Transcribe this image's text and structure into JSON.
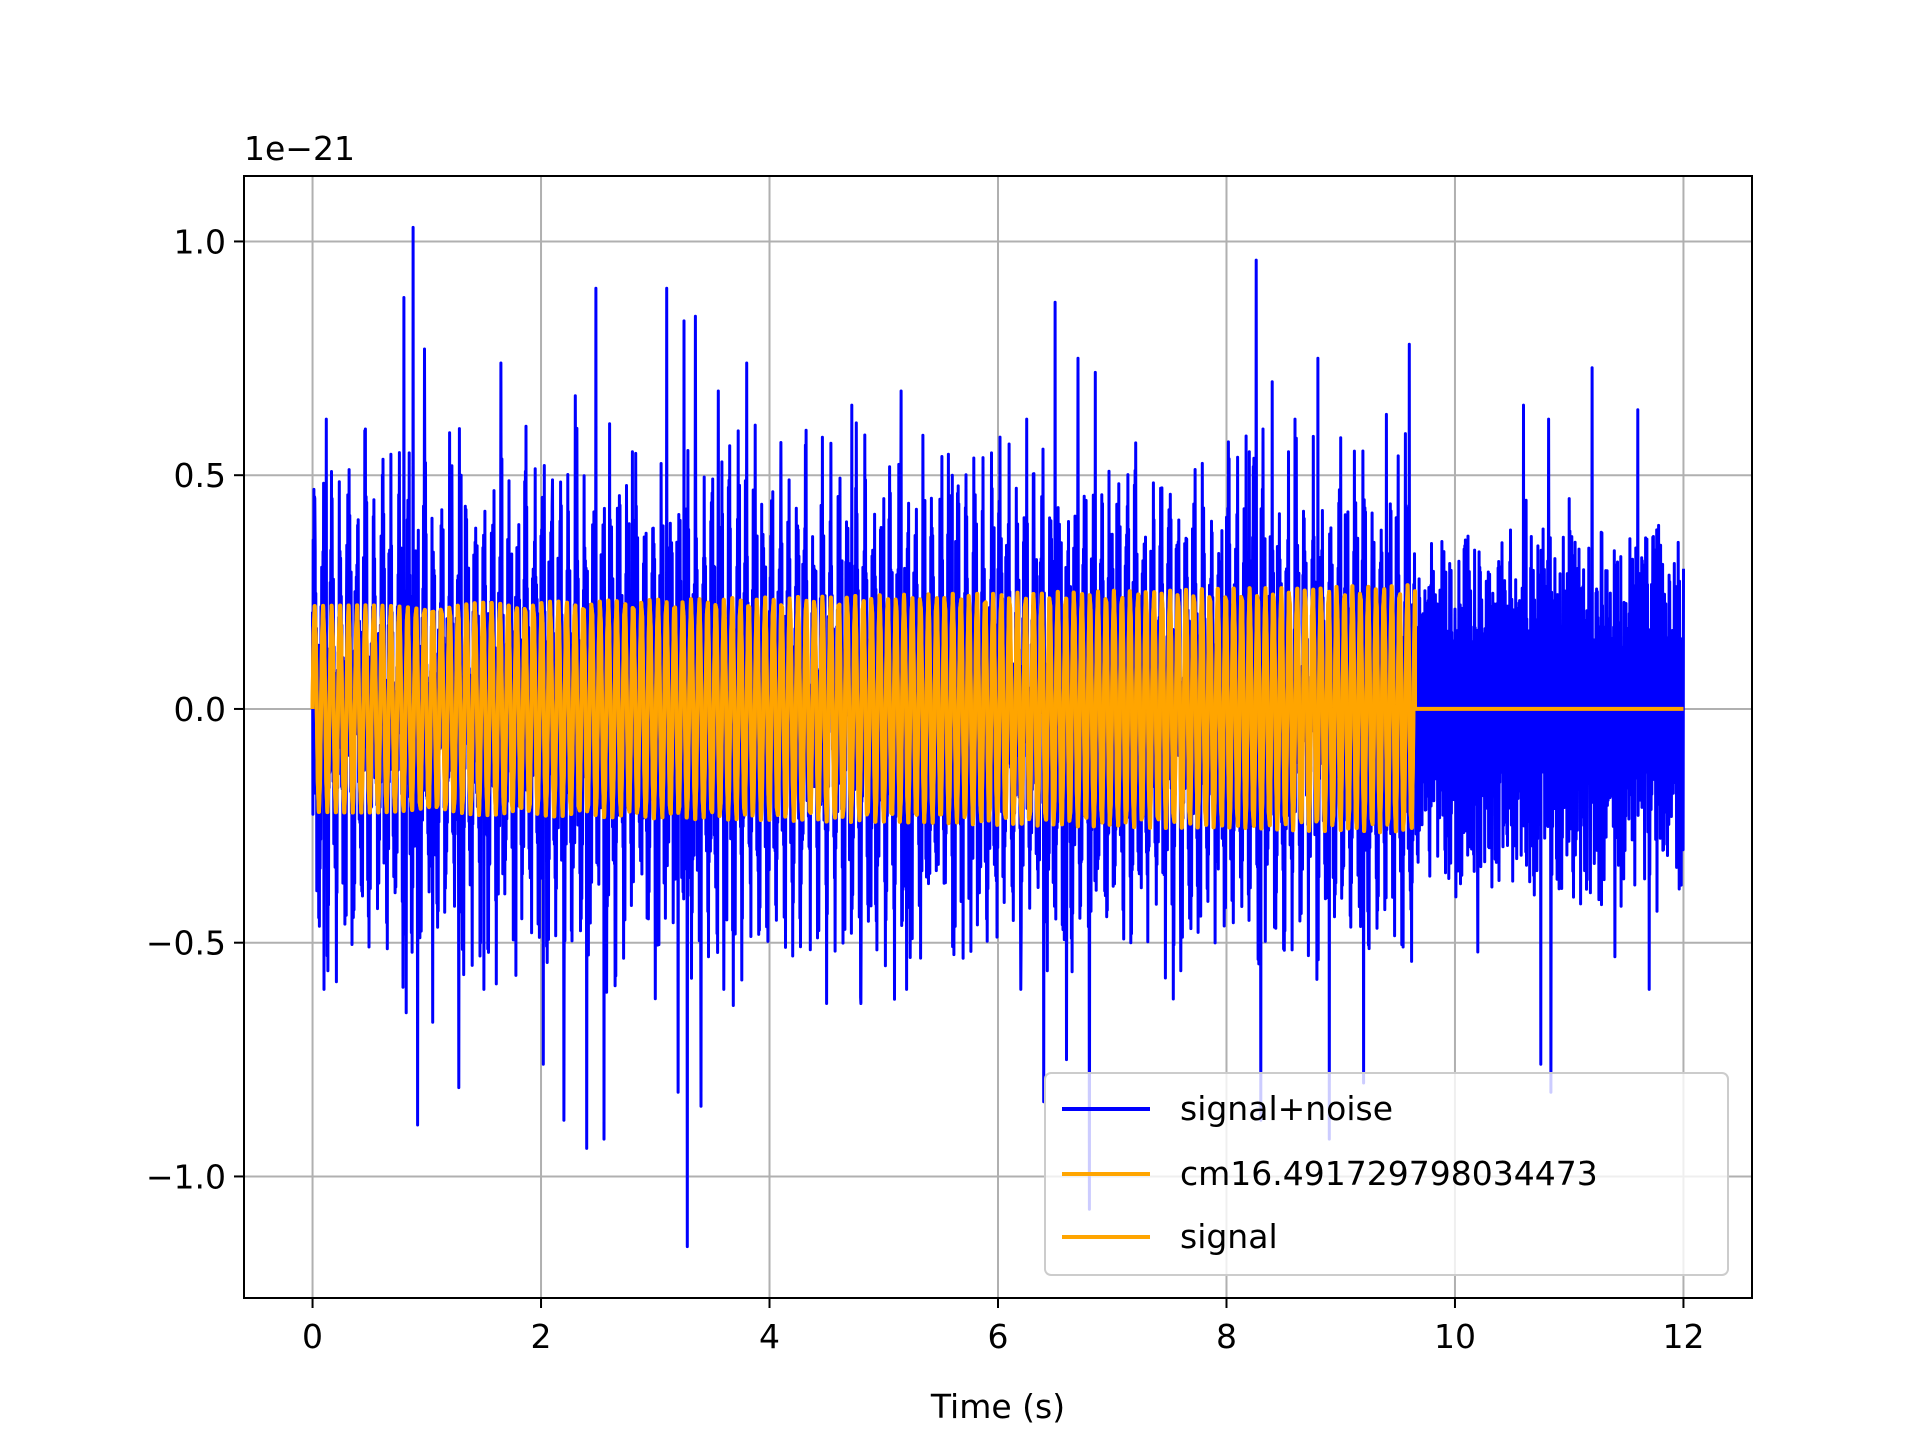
{
  "chart_data": {
    "type": "line",
    "title": "",
    "xlabel": "Time (s)",
    "ylabel": "",
    "y_offset_label": "1e−21",
    "xlim": [
      -0.6,
      12.6
    ],
    "ylim": [
      -1.26,
      1.14
    ],
    "x_ticks": [
      0,
      2,
      4,
      6,
      8,
      10,
      12
    ],
    "x_tick_labels": [
      "0",
      "2",
      "4",
      "6",
      "8",
      "10",
      "12"
    ],
    "y_ticks": [
      -1.0,
      -0.5,
      0.0,
      0.5,
      1.0
    ],
    "y_tick_labels": [
      "−1.0",
      "−0.5",
      "0.0",
      "0.5",
      "1.0"
    ],
    "grid": true,
    "legend_position": "lower-right",
    "colors": {
      "noise_series": "#0000ff",
      "signal_series": "#ffa500",
      "grid": "#b0b0b0",
      "axes": "#000000"
    },
    "series": [
      {
        "name": "signal+noise",
        "color": "#0000ff",
        "x_range": [
          0,
          12
        ],
        "peaks": [
          [
            0.02,
            0.45
          ],
          [
            0.1,
            -0.6
          ],
          [
            0.12,
            0.62
          ],
          [
            0.3,
            0.35
          ],
          [
            0.5,
            -0.35
          ],
          [
            0.6,
            0.37
          ],
          [
            0.8,
            0.88
          ],
          [
            0.82,
            -0.65
          ],
          [
            0.88,
            1.03
          ],
          [
            0.92,
            -0.89
          ],
          [
            0.98,
            0.77
          ],
          [
            1.05,
            -0.67
          ],
          [
            1.22,
            0.52
          ],
          [
            1.28,
            -0.81
          ],
          [
            1.3,
            0.5
          ],
          [
            1.5,
            -0.6
          ],
          [
            1.65,
            0.74
          ],
          [
            1.78,
            -0.57
          ],
          [
            2.0,
            0.37
          ],
          [
            2.02,
            -0.76
          ],
          [
            2.1,
            0.49
          ],
          [
            2.2,
            -0.88
          ],
          [
            2.3,
            0.67
          ],
          [
            2.4,
            -0.94
          ],
          [
            2.48,
            0.9
          ],
          [
            2.55,
            -0.92
          ],
          [
            2.6,
            0.61
          ],
          [
            2.8,
            0.55
          ],
          [
            3.0,
            -0.62
          ],
          [
            3.1,
            0.9
          ],
          [
            3.2,
            -0.82
          ],
          [
            3.25,
            0.83
          ],
          [
            3.28,
            -1.15
          ],
          [
            3.35,
            0.84
          ],
          [
            3.4,
            -0.85
          ],
          [
            3.55,
            0.68
          ],
          [
            3.6,
            -0.6
          ],
          [
            3.8,
            0.74
          ],
          [
            4.1,
            0.57
          ],
          [
            4.5,
            -0.63
          ],
          [
            4.72,
            0.65
          ],
          [
            4.8,
            -0.63
          ],
          [
            5.0,
            0.45
          ],
          [
            5.15,
            0.68
          ],
          [
            5.2,
            -0.6
          ],
          [
            5.6,
            0.5
          ],
          [
            6.2,
            -0.6
          ],
          [
            6.25,
            0.62
          ],
          [
            6.4,
            -0.84
          ],
          [
            6.5,
            0.87
          ],
          [
            6.6,
            -0.75
          ],
          [
            6.7,
            0.75
          ],
          [
            6.8,
            -1.07
          ],
          [
            6.85,
            0.72
          ],
          [
            7.2,
            0.51
          ],
          [
            7.6,
            -0.56
          ],
          [
            8.0,
            0.41
          ],
          [
            8.2,
            0.55
          ],
          [
            8.26,
            0.96
          ],
          [
            8.3,
            -0.88
          ],
          [
            8.4,
            0.7
          ],
          [
            8.6,
            0.62
          ],
          [
            8.8,
            0.75
          ],
          [
            8.9,
            -0.92
          ],
          [
            9.0,
            0.58
          ],
          [
            9.2,
            -0.8
          ],
          [
            9.4,
            0.63
          ],
          [
            9.6,
            0.78
          ],
          [
            9.62,
            -0.54
          ],
          [
            9.9,
            0.3
          ],
          [
            10.2,
            -0.52
          ],
          [
            10.6,
            0.65
          ],
          [
            10.75,
            -0.76
          ],
          [
            10.82,
            0.62
          ],
          [
            10.84,
            -0.82
          ],
          [
            11.0,
            0.45
          ],
          [
            11.2,
            0.73
          ],
          [
            11.4,
            -0.53
          ],
          [
            11.6,
            0.64
          ],
          [
            11.7,
            -0.6
          ],
          [
            11.8,
            0.35
          ],
          [
            12.0,
            0.3
          ]
        ]
      },
      {
        "name": "cm16.491729798034473",
        "color": "#ffa500",
        "x_range": [
          0,
          9.65
        ],
        "amplitude_start": 0.22,
        "amplitude_end": 0.265,
        "approx_cycles": 130,
        "after_end_value": 0.0
      },
      {
        "name": "signal",
        "color": "#ffa500",
        "x_range": [
          0,
          12
        ],
        "amplitude_start": 0.22,
        "amplitude_end": 0.265,
        "approx_cycles": 130,
        "oscillation_end": 9.65,
        "after_end_value": 0.0
      }
    ]
  }
}
